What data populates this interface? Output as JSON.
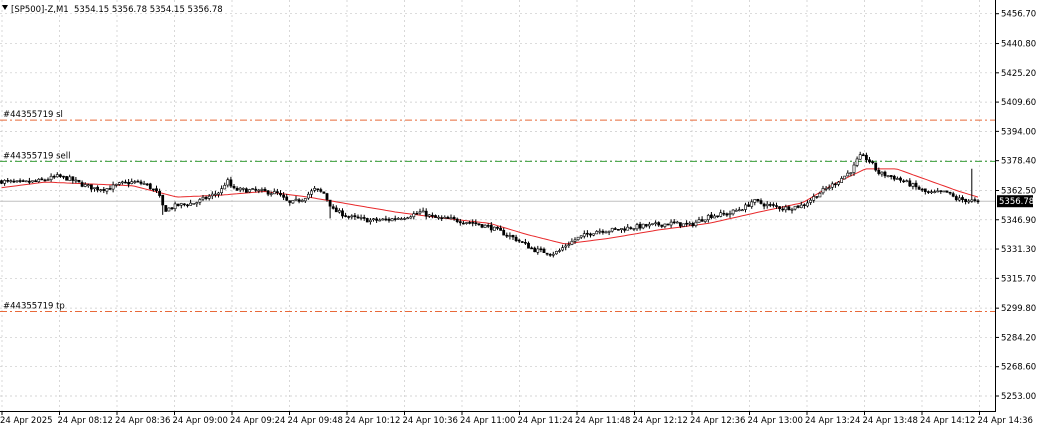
{
  "header": {
    "collapse_icon": "triangle-down-icon",
    "symbol": "[SP500]-Z,M1",
    "ohlc": "5354.15 5356.78 5354.15 5356.78"
  },
  "colors": {
    "background": "#ffffff",
    "grid": "#c8c8c8",
    "candle": "#000000",
    "ma_line": "#e8282a",
    "sl_line": "#e86a3a",
    "sell_line": "#3aa03a",
    "tp_line": "#e86a3a",
    "bid_line": "#c0c0c0",
    "price_label_bg": "#000000",
    "price_label_text": "#ffffff"
  },
  "trade_levels": {
    "sl": {
      "label": "#44355719 sl",
      "price": 5400.0
    },
    "sell": {
      "label": "#44355719 sell",
      "price": 5378.0
    },
    "tp": {
      "label": "#44355719 tp",
      "price": 5298.0
    }
  },
  "current_price": {
    "label": "5356.78",
    "value": 5356.78
  },
  "chart_data": {
    "type": "candlestick",
    "title": "",
    "y_ticks": [
      "5456.70",
      "5440.80",
      "5425.20",
      "5409.60",
      "5394.00",
      "5378.40",
      "5362.50",
      "5346.90",
      "5331.30",
      "5315.70",
      "5299.80",
      "5284.20",
      "5268.60",
      "5253.00"
    ],
    "y_range": [
      5245.0,
      5464.0
    ],
    "x_ticks": [
      "24 Apr 2025",
      "24 Apr 08:12",
      "24 Apr 08:36",
      "24 Apr 09:00",
      "24 Apr 09:24",
      "24 Apr 09:48",
      "24 Apr 10:12",
      "24 Apr 10:36",
      "24 Apr 11:00",
      "24 Apr 11:24",
      "24 Apr 11:48",
      "24 Apr 12:12",
      "24 Apr 12:36",
      "24 Apr 13:00",
      "24 Apr 13:24",
      "24 Apr 13:48",
      "24 Apr 14:12",
      "24 Apr 14:36"
    ],
    "close_profile": [
      [
        0,
        5367.5
      ],
      [
        6,
        5366.5
      ],
      [
        12,
        5367.5
      ],
      [
        18,
        5370
      ],
      [
        22,
        5368.5
      ],
      [
        26,
        5365.5
      ],
      [
        30,
        5363.5
      ],
      [
        34,
        5363.5
      ],
      [
        38,
        5366
      ],
      [
        42,
        5367
      ],
      [
        46,
        5366
      ],
      [
        50,
        5361
      ],
      [
        52,
        5352
      ],
      [
        56,
        5354.5
      ],
      [
        62,
        5356
      ],
      [
        66,
        5359
      ],
      [
        70,
        5362
      ],
      [
        72,
        5368
      ],
      [
        74,
        5363
      ],
      [
        80,
        5362.5
      ],
      [
        86,
        5361.5
      ],
      [
        88,
        5361
      ],
      [
        92,
        5355.5
      ],
      [
        96,
        5358
      ],
      [
        100,
        5363
      ],
      [
        103,
        5361
      ],
      [
        106,
        5352
      ],
      [
        112,
        5348
      ],
      [
        118,
        5346.5
      ],
      [
        124,
        5347
      ],
      [
        130,
        5349
      ],
      [
        134,
        5351
      ],
      [
        138,
        5348
      ],
      [
        144,
        5347
      ],
      [
        150,
        5345.5
      ],
      [
        156,
        5343
      ],
      [
        160,
        5340
      ],
      [
        164,
        5337
      ],
      [
        170,
        5331
      ],
      [
        176,
        5329
      ],
      [
        178,
        5330
      ],
      [
        180,
        5333
      ],
      [
        184,
        5337
      ],
      [
        190,
        5341
      ],
      [
        196,
        5341.5
      ],
      [
        202,
        5343
      ],
      [
        208,
        5344
      ],
      [
        214,
        5345
      ],
      [
        220,
        5344
      ],
      [
        226,
        5349
      ],
      [
        232,
        5350
      ],
      [
        238,
        5354
      ],
      [
        240,
        5357
      ],
      [
        244,
        5355
      ],
      [
        250,
        5353
      ],
      [
        256,
        5354.5
      ],
      [
        258,
        5357
      ],
      [
        262,
        5362
      ],
      [
        266,
        5366
      ],
      [
        270,
        5371
      ],
      [
        272,
        5374
      ],
      [
        274,
        5380.5
      ],
      [
        276,
        5380
      ],
      [
        278,
        5377
      ],
      [
        280,
        5372
      ],
      [
        286,
        5369
      ],
      [
        290,
        5366
      ],
      [
        296,
        5361
      ],
      [
        302,
        5361.5
      ],
      [
        305,
        5358
      ],
      [
        310,
        5357
      ],
      [
        312,
        5356
      ]
    ],
    "ma_profile": [
      [
        0,
        5364
      ],
      [
        14,
        5367
      ],
      [
        28,
        5366
      ],
      [
        42,
        5365
      ],
      [
        56,
        5359
      ],
      [
        70,
        5360
      ],
      [
        84,
        5362
      ],
      [
        98,
        5359
      ],
      [
        112,
        5355
      ],
      [
        126,
        5351
      ],
      [
        140,
        5348
      ],
      [
        156,
        5345
      ],
      [
        168,
        5339
      ],
      [
        180,
        5334
      ],
      [
        194,
        5337
      ],
      [
        210,
        5341.5
      ],
      [
        226,
        5345
      ],
      [
        242,
        5351
      ],
      [
        256,
        5356
      ],
      [
        266,
        5366
      ],
      [
        276,
        5374
      ],
      [
        286,
        5374
      ],
      [
        296,
        5368
      ],
      [
        306,
        5362
      ],
      [
        312,
        5359
      ]
    ]
  }
}
